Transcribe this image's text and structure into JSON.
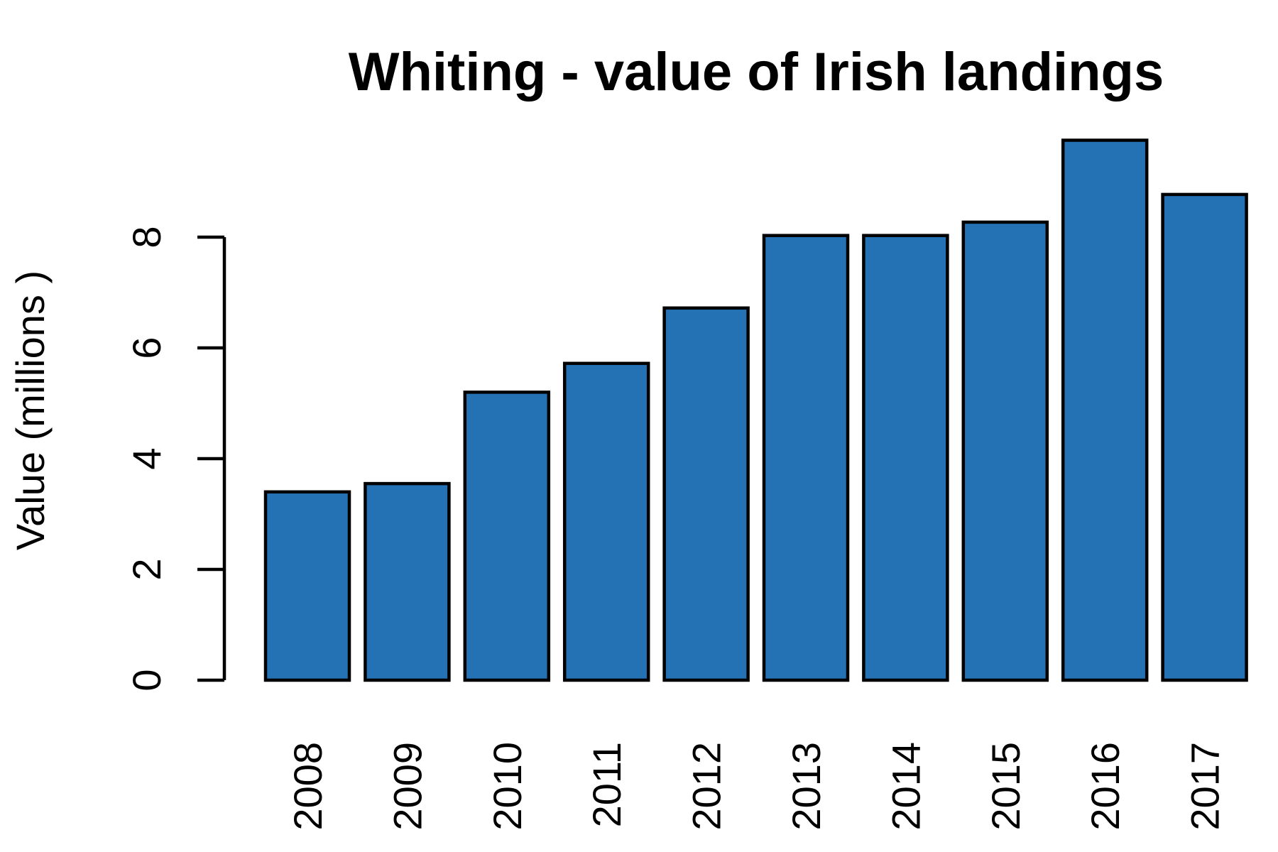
{
  "chart_data": {
    "type": "bar",
    "title": "Whiting - value of Irish landings",
    "ylabel": "Value (millions )",
    "xlabel": "",
    "categories": [
      "2008",
      "2009",
      "2010",
      "2011",
      "2012",
      "2013",
      "2014",
      "2015",
      "2016",
      "2017"
    ],
    "values": [
      3.4,
      3.55,
      5.2,
      5.72,
      6.72,
      8.03,
      8.03,
      8.27,
      9.75,
      8.77
    ],
    "ylim": [
      0,
      10
    ],
    "yticks": [
      "0",
      "2",
      "4",
      "6",
      "8"
    ],
    "bar_color": "#2471b3",
    "grid": false,
    "legend": "none"
  }
}
